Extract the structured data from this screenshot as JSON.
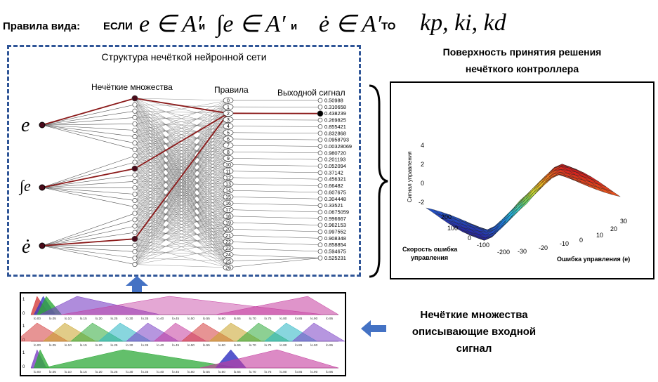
{
  "rules_line": {
    "label": "Правила вида:",
    "if_word": "ЕСЛИ",
    "cond1": "e ∈ A′",
    "and1": "и",
    "cond2": "∫e ∈ A′",
    "and2": "и",
    "cond3": "ė ∈ A′",
    "then_word": "ТО",
    "outputs": "kp, ki, kd"
  },
  "network": {
    "title": "Структура нечёткой нейронной сети",
    "col_fuzzy_sets": "Нечёткие множества",
    "col_rules": "Правила",
    "col_output": "Выходной сигнал",
    "inputs": [
      "e",
      "∫e",
      "ė"
    ],
    "rule_ids": [
      "0",
      "1",
      "2",
      "3",
      "4",
      "5",
      "6",
      "7",
      "8",
      "9",
      "10",
      "11",
      "12",
      "13",
      "14",
      "15",
      "16",
      "17",
      "18",
      "19",
      "20",
      "21",
      "22",
      "23",
      "24",
      "25",
      "26"
    ],
    "output_values": [
      "0.50988",
      "0.310658",
      "0.438239",
      "0.269825",
      "0.855421",
      "0.832868",
      "0.0958793",
      "0.00328069",
      "0.980720",
      "0.201193",
      "0.052094",
      "0.37142",
      "0.456321",
      "0.66482",
      "0.607675",
      "0.304448",
      "0.33521",
      "0.0675059",
      "0.996667",
      "0.962153",
      "0.997552",
      "0.908348",
      "0.858854",
      "0.594675",
      "0.525231"
    ]
  },
  "surface": {
    "caption_line1": "Поверхность принятия решения",
    "caption_line2": "нечёткого контроллера",
    "z_label": "Сигнал управления",
    "z_ticks": [
      "4",
      "2",
      "0",
      "-2"
    ],
    "x_label": "Ошибка управления (е)",
    "x_ticks": [
      "30",
      "20",
      "10",
      "0",
      "-10",
      "-20",
      "-30"
    ],
    "y_label_line1": "Скорость ошибка",
    "y_label_line2": "управления",
    "y_ticks": [
      "200",
      "100",
      "0",
      "-100",
      "-200"
    ]
  },
  "membership": {
    "caption_line1": "Нечёткие множества",
    "caption_line2": "описывающие входной",
    "caption_line3": "сигнал",
    "row_labels": [
      "1",
      "0",
      "1",
      "0",
      "1",
      "0"
    ],
    "ticks": [
      "0.00",
      "0.05",
      "0.10",
      "0.15",
      "0.20",
      "0.25",
      "0.30",
      "0.35",
      "0.40",
      "0.45",
      "0.50",
      "0.55",
      "0.60",
      "0.65",
      "0.70",
      "0.75",
      "0.80",
      "0.85",
      "0.90",
      "0.95"
    ]
  },
  "colors": {
    "frame_dashed": "#2f5597",
    "arrow": "#4472c4",
    "active_link": "#8b1a1a"
  }
}
